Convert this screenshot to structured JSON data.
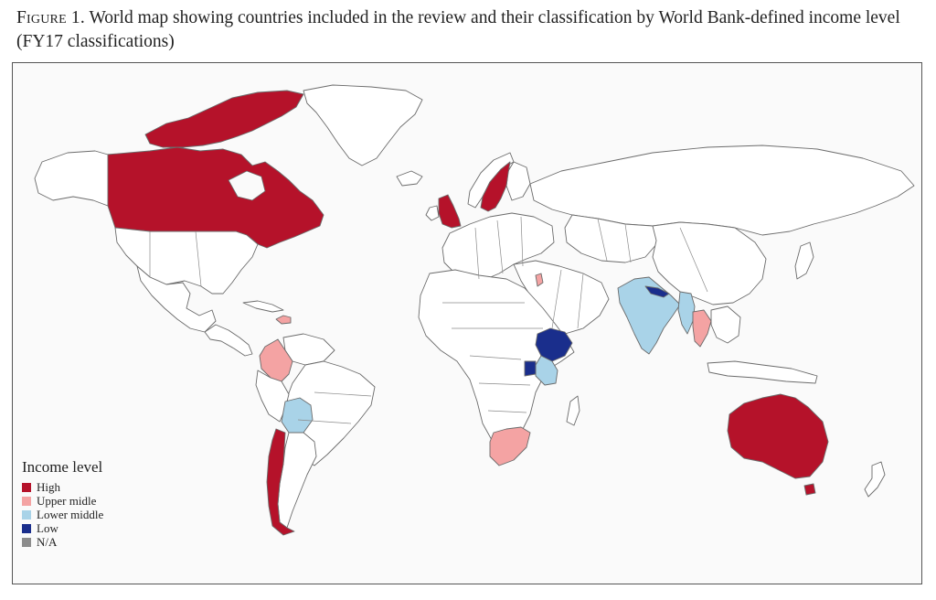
{
  "caption": {
    "lead": "Figure 1.",
    "text": "World map showing countries included in the review and their classification by World Bank-defined income level (FY17 classifications)"
  },
  "legend": {
    "title": "Income level",
    "items": [
      {
        "key": "high",
        "label": "High",
        "color": "#b5122a"
      },
      {
        "key": "upper",
        "label": "Upper midle",
        "color": "#f4a3a3"
      },
      {
        "key": "lower",
        "label": "Lower middle",
        "color": "#a9d3e8"
      },
      {
        "key": "low",
        "label": "Low",
        "color": "#1a2e8c"
      },
      {
        "key": "na",
        "label": "N/A",
        "color": "#8c8c8c"
      }
    ]
  },
  "colors": {
    "unclassified": "#ffffff",
    "border": "#6b6b6b",
    "background": "#fafafa"
  },
  "countries": [
    {
      "name": "Canada",
      "income": "high"
    },
    {
      "name": "United Kingdom",
      "income": "high"
    },
    {
      "name": "Sweden",
      "income": "high"
    },
    {
      "name": "Australia",
      "income": "high"
    },
    {
      "name": "Chile",
      "income": "high"
    },
    {
      "name": "Colombia",
      "income": "upper"
    },
    {
      "name": "South Africa",
      "income": "upper"
    },
    {
      "name": "Thailand",
      "income": "upper"
    },
    {
      "name": "Lebanon",
      "income": "upper"
    },
    {
      "name": "Dominican Republic",
      "income": "upper"
    },
    {
      "name": "Bolivia",
      "income": "lower"
    },
    {
      "name": "India",
      "income": "lower"
    },
    {
      "name": "Myanmar",
      "income": "lower"
    },
    {
      "name": "Kenya",
      "income": "lower"
    },
    {
      "name": "Ethiopia",
      "income": "low"
    },
    {
      "name": "Nepal",
      "income": "low"
    },
    {
      "name": "Uganda",
      "income": "low"
    }
  ]
}
